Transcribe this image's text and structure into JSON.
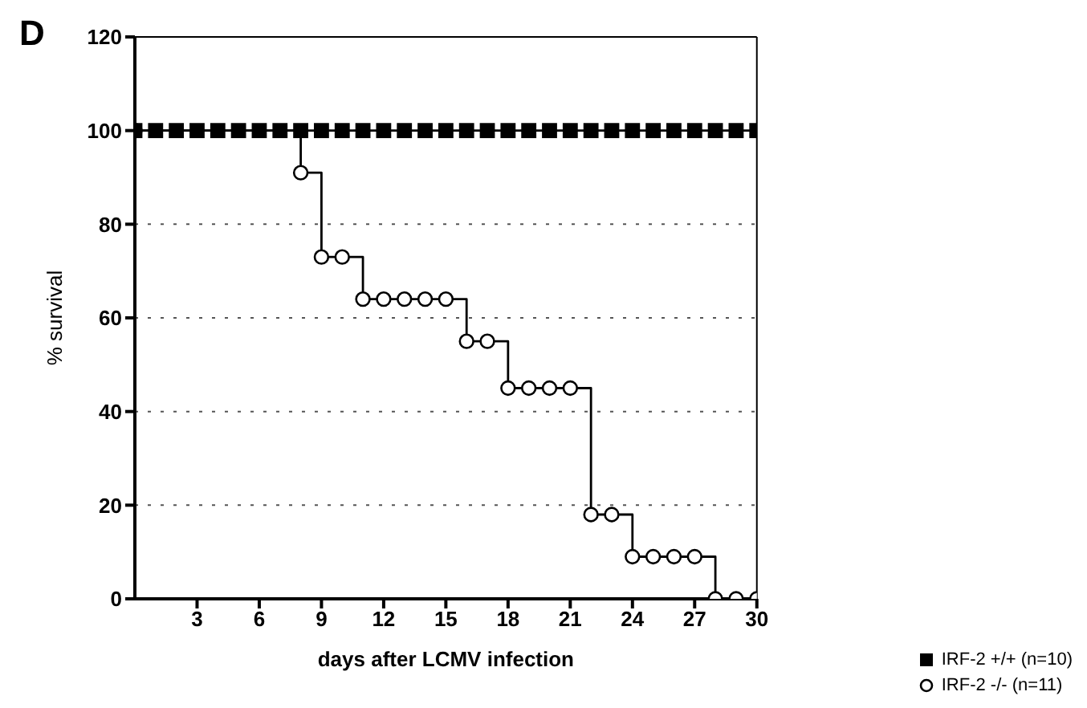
{
  "chart_data": {
    "type": "step",
    "title": "D",
    "xlabel": "days after LCMV infection",
    "ylabel": "% survival",
    "x": [
      0,
      1,
      2,
      3,
      4,
      5,
      6,
      7,
      8,
      9,
      10,
      11,
      12,
      13,
      14,
      15,
      16,
      17,
      18,
      19,
      20,
      21,
      22,
      23,
      24,
      25,
      26,
      27,
      28,
      29,
      30
    ],
    "series": [
      {
        "name": "IRF-2 -/-  (n=11)",
        "color": "#000000",
        "marker": "circle",
        "x": [
          0,
          8,
          9,
          10,
          11,
          12,
          13,
          14,
          15,
          16,
          17,
          18,
          19,
          20,
          21,
          22,
          23,
          24,
          25,
          26,
          27,
          28,
          29,
          30
        ],
        "values": [
          100,
          91,
          73,
          73,
          64,
          64,
          64,
          64,
          64,
          55,
          55,
          45,
          45,
          45,
          45,
          18,
          18,
          9,
          9,
          9,
          9,
          0,
          0,
          0
        ]
      },
      {
        "name": "IRF-2 +/+ (n=10)",
        "color": "#000000",
        "marker": "square",
        "values": [
          100,
          100,
          100,
          100,
          100,
          100,
          100,
          100,
          100,
          100,
          100,
          100,
          100,
          100,
          100,
          100,
          100,
          100,
          100,
          100,
          100,
          100,
          100,
          100,
          100,
          100,
          100,
          100,
          100,
          100,
          100
        ]
      }
    ],
    "xlim": [
      0,
      30
    ],
    "xticks": [
      3,
      6,
      9,
      12,
      15,
      18,
      21,
      24,
      27,
      30
    ],
    "ylim": [
      0,
      120
    ],
    "yticks": [
      0,
      20,
      40,
      60,
      80,
      100,
      120
    ],
    "grid": "y",
    "legend": "bottom right",
    "line_style": "solid"
  }
}
